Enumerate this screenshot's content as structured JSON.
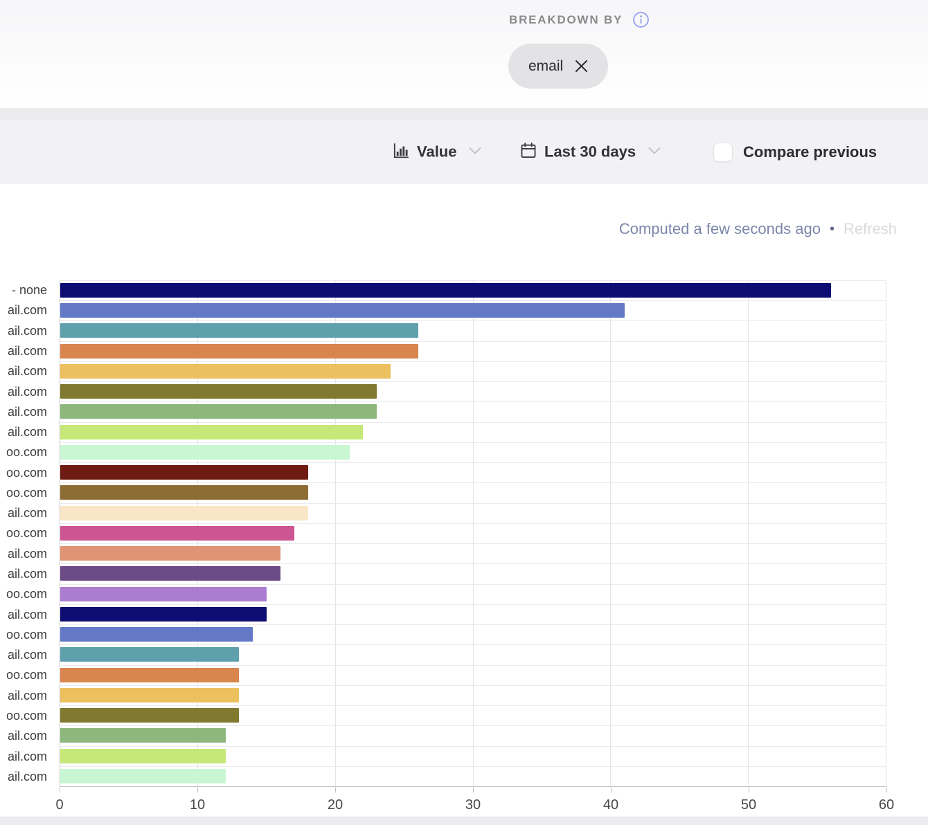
{
  "header": {
    "breakdown_label": "BREAKDOWN BY",
    "chip": {
      "label": "email"
    }
  },
  "toolbar": {
    "value_control": {
      "label": "Value"
    },
    "date_control": {
      "label": "Last 30 days"
    },
    "compare_checkbox": {
      "label": "Compare previous",
      "checked": false
    }
  },
  "status": {
    "computed_text": "Computed a few seconds ago",
    "separator": "•",
    "refresh_label": "Refresh"
  },
  "chart_data": {
    "type": "bar",
    "orientation": "horizontal",
    "title": "",
    "xlabel": "",
    "ylabel": "",
    "xlim": [
      0,
      60
    ],
    "xticks": [
      0,
      10,
      20,
      30,
      40,
      50,
      60
    ],
    "grid": true,
    "legend": "none",
    "rows": [
      {
        "label": "- none",
        "value": 56,
        "color": "#0d0d73"
      },
      {
        "label": "ail.com",
        "value": 41,
        "color": "#6478c8"
      },
      {
        "label": "ail.com",
        "value": 26,
        "color": "#5fa0ad"
      },
      {
        "label": "ail.com",
        "value": 26,
        "color": "#d8854e"
      },
      {
        "label": "ail.com",
        "value": 24,
        "color": "#edc05f"
      },
      {
        "label": "ail.com",
        "value": 23,
        "color": "#80792f"
      },
      {
        "label": "ail.com",
        "value": 23,
        "color": "#8db77d"
      },
      {
        "label": "ail.com",
        "value": 22,
        "color": "#c6e878"
      },
      {
        "label": "oo.com",
        "value": 21,
        "color": "#c9f7d4"
      },
      {
        "label": "oo.com",
        "value": 18,
        "color": "#6e1b13"
      },
      {
        "label": "oo.com",
        "value": 18,
        "color": "#8e6d35"
      },
      {
        "label": "ail.com",
        "value": 18,
        "color": "#f9e6c7"
      },
      {
        "label": "oo.com",
        "value": 17,
        "color": "#cd5591"
      },
      {
        "label": "ail.com",
        "value": 16,
        "color": "#e09473"
      },
      {
        "label": "ail.com",
        "value": 16,
        "color": "#6d4a88"
      },
      {
        "label": "oo.com",
        "value": 15,
        "color": "#ac7cd1"
      },
      {
        "label": "ail.com",
        "value": 15,
        "color": "#0d0d73"
      },
      {
        "label": "oo.com",
        "value": 14,
        "color": "#6478c8"
      },
      {
        "label": "ail.com",
        "value": 13,
        "color": "#5fa0ad"
      },
      {
        "label": "oo.com",
        "value": 13,
        "color": "#d8854e"
      },
      {
        "label": "ail.com",
        "value": 13,
        "color": "#edc05f"
      },
      {
        "label": "oo.com",
        "value": 13,
        "color": "#80792f"
      },
      {
        "label": "ail.com",
        "value": 12,
        "color": "#8db77d"
      },
      {
        "label": "ail.com",
        "value": 12,
        "color": "#c6e878"
      },
      {
        "label": "ail.com",
        "value": 12,
        "color": "#c9f7d4"
      }
    ]
  }
}
